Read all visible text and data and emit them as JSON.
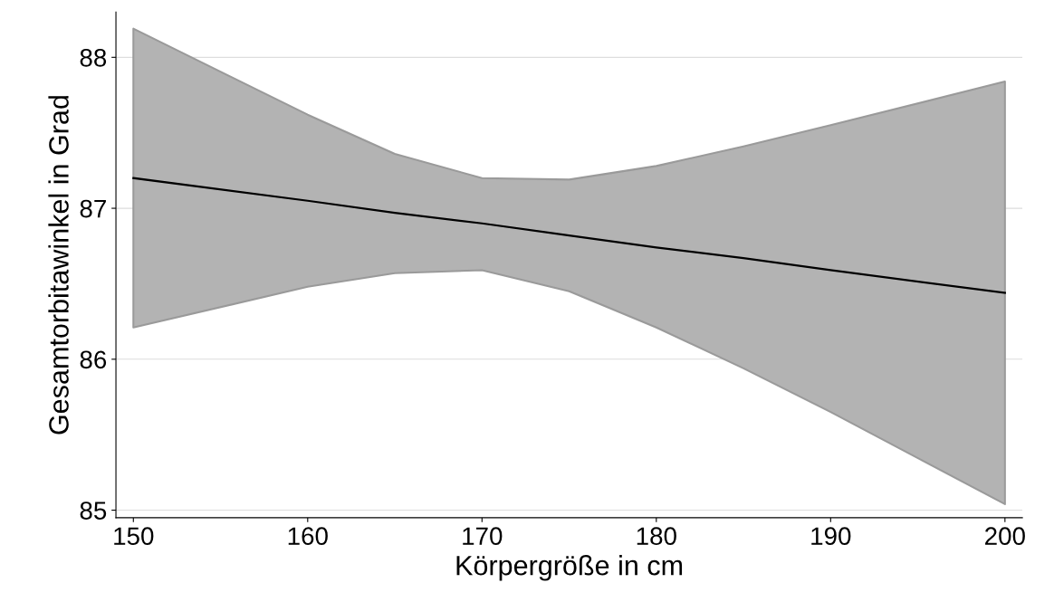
{
  "chart_data": {
    "type": "line",
    "xlabel": "Körpergröße in cm",
    "ylabel": "Gesamtorbitawinkel in Grad",
    "x": [
      150,
      160,
      165,
      170,
      175,
      180,
      185,
      190,
      200
    ],
    "series": [
      {
        "color": "#000000",
        "values": [
          87.2,
          87.05,
          86.97,
          86.9,
          86.82,
          86.74,
          86.67,
          86.59,
          86.44
        ],
        "lower": [
          86.21,
          86.48,
          86.57,
          86.59,
          86.45,
          86.21,
          85.94,
          85.65,
          85.04
        ],
        "upper": [
          88.19,
          87.62,
          87.36,
          87.2,
          87.19,
          87.28,
          87.41,
          87.55,
          87.84
        ]
      }
    ],
    "xlim": [
      149,
      201
    ],
    "ylim": [
      84.95,
      88.3
    ],
    "xticks": [
      150,
      160,
      170,
      180,
      190,
      200
    ],
    "yticks": [
      85,
      86,
      87,
      88
    ],
    "grid": "y",
    "legend": false,
    "marker": "none",
    "line_style": "solid"
  }
}
